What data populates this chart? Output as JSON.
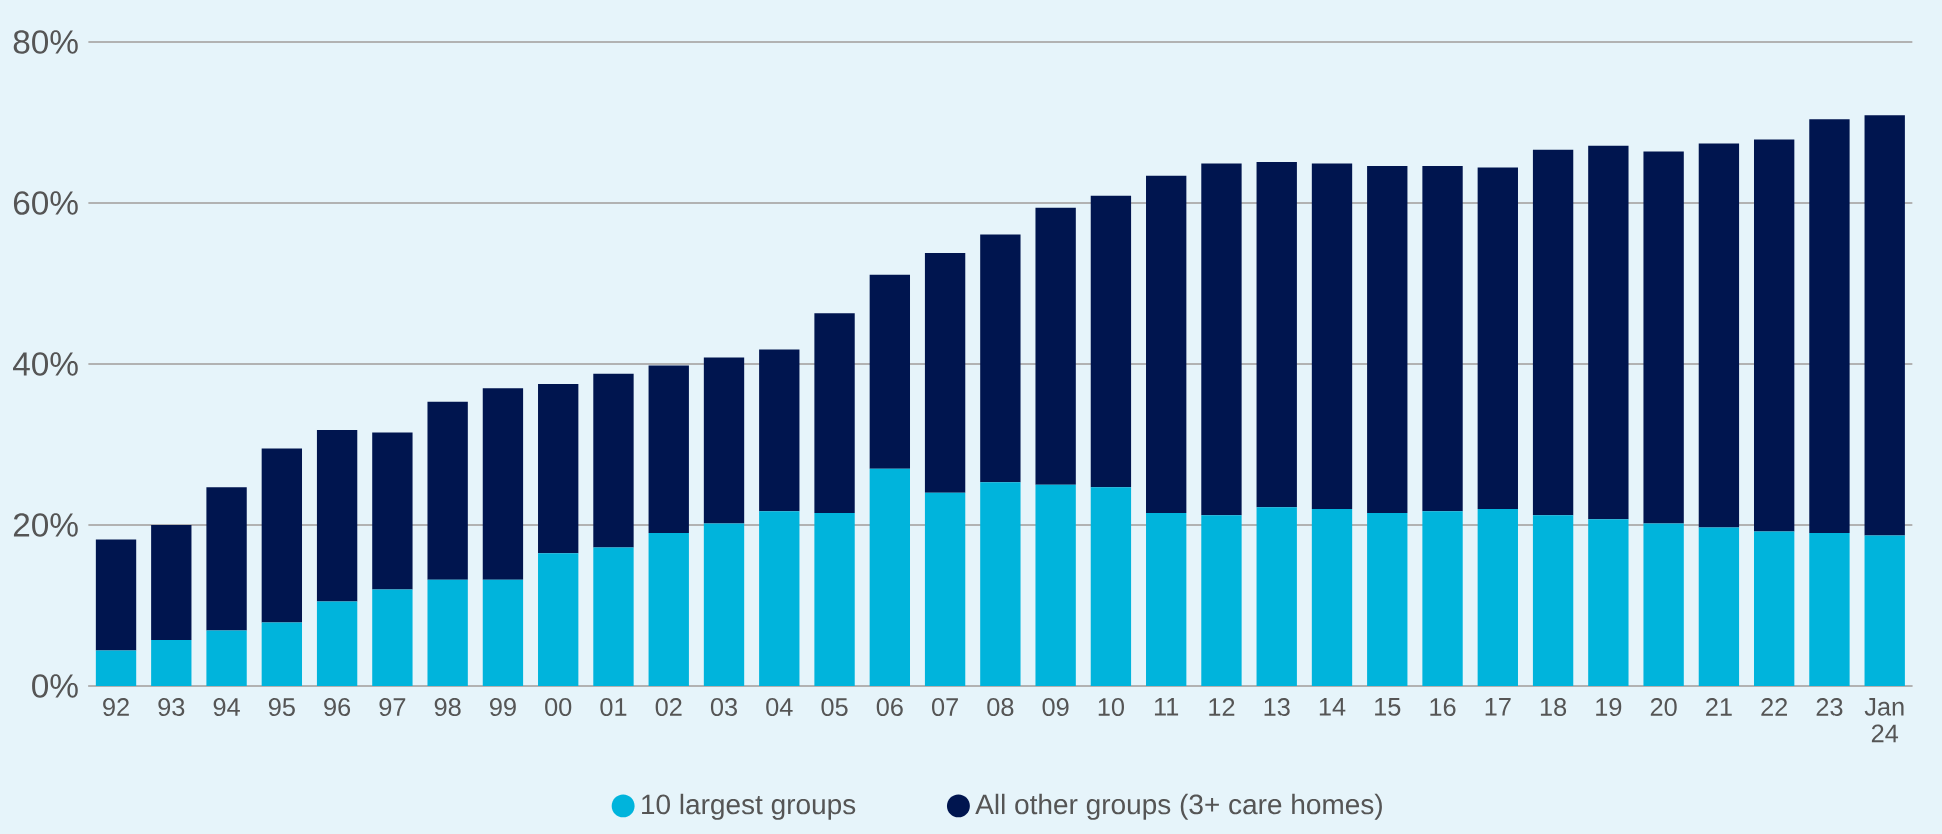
{
  "chart_data": {
    "type": "bar",
    "stacked": true,
    "categories": [
      "92",
      "93",
      "94",
      "95",
      "96",
      "97",
      "98",
      "99",
      "00",
      "01",
      "02",
      "03",
      "04",
      "05",
      "06",
      "07",
      "08",
      "09",
      "10",
      "11",
      "12",
      "13",
      "14",
      "15",
      "16",
      "17",
      "18",
      "19",
      "20",
      "21",
      "22",
      "23",
      "Jan 24"
    ],
    "series": [
      {
        "name": "10 largest groups",
        "color": "#00b4dc",
        "values": [
          4.4,
          5.7,
          6.9,
          7.9,
          10.5,
          12.0,
          13.2,
          13.2,
          16.5,
          17.2,
          19.0,
          20.2,
          21.7,
          21.5,
          27.0,
          24.0,
          25.3,
          25.0,
          24.7,
          21.5,
          21.2,
          22.2,
          22.0,
          21.5,
          21.7,
          22.0,
          21.2,
          20.7,
          20.2,
          19.7,
          19.2,
          19.0,
          18.7
        ]
      },
      {
        "name": "All other groups (3+ care homes)",
        "color": "#00154f",
        "values": [
          13.8,
          14.3,
          17.8,
          21.6,
          21.3,
          19.5,
          22.1,
          23.8,
          21.0,
          21.6,
          20.8,
          20.6,
          20.1,
          24.8,
          24.1,
          29.8,
          30.8,
          34.4,
          36.2,
          41.9,
          43.7,
          42.9,
          42.9,
          43.1,
          42.9,
          42.4,
          45.4,
          46.4,
          46.2,
          47.7,
          48.7,
          51.4,
          52.2
        ]
      }
    ],
    "ylim": [
      0,
      80
    ],
    "yticks": [
      {
        "value": 0,
        "label": "0%"
      },
      {
        "value": 20,
        "label": "20%"
      },
      {
        "value": 40,
        "label": "40%"
      },
      {
        "value": 60,
        "label": "60%"
      },
      {
        "value": 80,
        "label": "80%"
      }
    ],
    "grid": "y",
    "legend": "bottom"
  }
}
